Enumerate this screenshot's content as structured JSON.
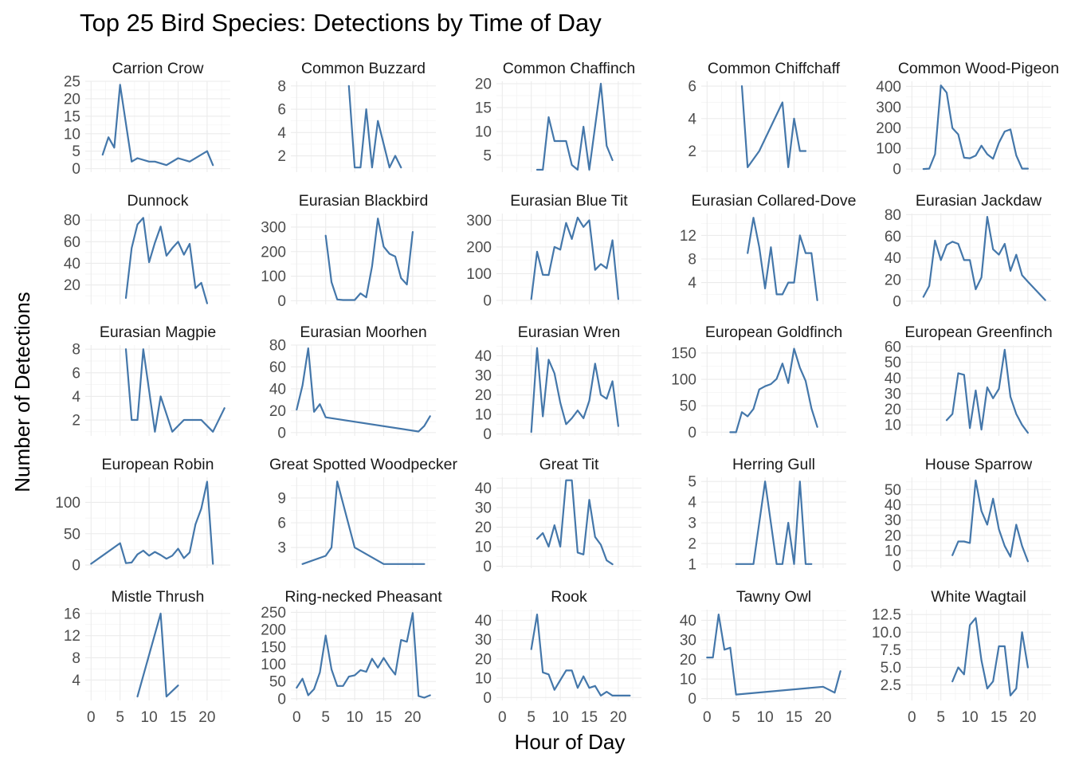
{
  "chart_data": {
    "type": "line",
    "title": "Top 25 Bird Species: Detections by Time of Day",
    "xlabel": "Hour of Day",
    "ylabel": "Number of Detections",
    "xlim": [
      -1,
      24
    ],
    "x_ticks": [
      0,
      5,
      10,
      15,
      20
    ],
    "x_tick_labels": [
      "0",
      "5",
      "10",
      "15",
      "20"
    ],
    "grid": true,
    "line_color": "#4477aa",
    "panels": [
      {
        "name": "Carrion Crow",
        "ylim": [
          -1,
          25
        ],
        "y_ticks": [
          0,
          5,
          10,
          15,
          20,
          25
        ],
        "x": [
          2,
          3,
          4,
          5,
          7,
          8,
          10,
          11,
          13,
          15,
          17,
          20,
          21
        ],
        "y": [
          4,
          9,
          6,
          24,
          2,
          3,
          2,
          2,
          1,
          3,
          2,
          5,
          1
        ]
      },
      {
        "name": "Common Buzzard",
        "ylim": [
          0.6,
          8.4
        ],
        "y_ticks": [
          2,
          4,
          6,
          8
        ],
        "x": [
          9,
          10,
          11,
          12,
          13,
          14,
          16,
          17,
          18
        ],
        "y": [
          8,
          1,
          1,
          6,
          1,
          5,
          1,
          2,
          1
        ]
      },
      {
        "name": "Common Chaffinch",
        "ylim": [
          1.5,
          20.5
        ],
        "y_ticks": [
          5,
          10,
          15,
          20
        ],
        "x": [
          6,
          7,
          8,
          9,
          10,
          11,
          12,
          13,
          14,
          15,
          17,
          18,
          19
        ],
        "y": [
          2,
          2,
          13,
          8,
          8,
          8,
          3,
          2,
          11,
          2,
          20,
          7,
          4
        ]
      },
      {
        "name": "Common Chiffchaff",
        "ylim": [
          0.7,
          6.3
        ],
        "y_ticks": [
          2,
          4,
          6
        ],
        "x": [
          6,
          7,
          9,
          13,
          14,
          15,
          16,
          17
        ],
        "y": [
          6,
          1,
          2,
          5,
          1,
          4,
          2,
          2
        ]
      },
      {
        "name": "Common Wood-Pigeon",
        "ylim": [
          -15,
          425
        ],
        "y_ticks": [
          0,
          100,
          200,
          300,
          400
        ],
        "x": [
          2,
          3,
          4,
          5,
          6,
          7,
          8,
          9,
          10,
          11,
          12,
          13,
          14,
          15,
          16,
          17,
          18,
          19,
          20
        ],
        "y": [
          0,
          2,
          72,
          405,
          370,
          198,
          168,
          55,
          52,
          65,
          113,
          72,
          50,
          127,
          182,
          192,
          66,
          2,
          2
        ]
      },
      {
        "name": "Dunnock",
        "ylim": [
          2,
          86
        ],
        "y_ticks": [
          20,
          40,
          60,
          80
        ],
        "x": [
          6,
          7,
          8,
          9,
          10,
          11,
          12,
          13,
          14,
          15,
          16,
          17,
          18,
          19,
          20
        ],
        "y": [
          8,
          54,
          76,
          82,
          41,
          59,
          74,
          47,
          54,
          60,
          48,
          58,
          17,
          22,
          3
        ]
      },
      {
        "name": "Eurasian Blackbird",
        "ylim": [
          -15,
          355
        ],
        "y_ticks": [
          0,
          100,
          200,
          300
        ],
        "x": [
          5,
          6,
          7,
          8,
          9,
          10,
          11,
          12,
          13,
          14,
          15,
          16,
          17,
          18,
          19,
          20
        ],
        "y": [
          265,
          76,
          5,
          3,
          3,
          3,
          30,
          14,
          140,
          335,
          220,
          191,
          180,
          92,
          66,
          280
        ]
      },
      {
        "name": "Eurasian Blue Tit",
        "ylim": [
          -15,
          325
        ],
        "y_ticks": [
          0,
          100,
          200,
          300
        ],
        "x": [
          5,
          6,
          7,
          8,
          9,
          10,
          11,
          12,
          13,
          14,
          15,
          16,
          17,
          18,
          19,
          20
        ],
        "y": [
          5,
          182,
          96,
          95,
          200,
          190,
          290,
          230,
          310,
          275,
          300,
          114,
          136,
          120,
          225,
          5
        ]
      },
      {
        "name": "Eurasian Collared-Dove",
        "ylim": [
          0.3,
          15.7
        ],
        "y_ticks": [
          4,
          8,
          12
        ],
        "x": [
          7,
          8,
          9,
          10,
          11,
          12,
          13,
          14,
          15,
          16,
          17,
          18,
          19
        ],
        "y": [
          9,
          15,
          10,
          3,
          10,
          2,
          2,
          4,
          4,
          12,
          9,
          9,
          1
        ]
      },
      {
        "name": "Eurasian Jackdaw",
        "ylim": [
          -3,
          81
        ],
        "y_ticks": [
          0,
          20,
          40,
          60,
          80
        ],
        "x": [
          2,
          3,
          4,
          5,
          6,
          7,
          8,
          9,
          10,
          11,
          12,
          13,
          14,
          15,
          16,
          17,
          18,
          19,
          20,
          23
        ],
        "y": [
          4,
          14,
          56,
          38,
          52,
          55,
          53,
          38,
          38,
          11,
          22,
          78,
          48,
          43,
          53,
          28,
          43,
          24,
          18,
          1
        ]
      },
      {
        "name": "Eurasian Magpie",
        "ylim": [
          0.65,
          8.35
        ],
        "y_ticks": [
          2,
          4,
          6,
          8
        ],
        "x": [
          6,
          7,
          8,
          9,
          11,
          12,
          14,
          16,
          19,
          21,
          23
        ],
        "y": [
          8,
          2,
          2,
          8,
          1,
          4,
          1,
          2,
          2,
          1,
          3
        ]
      },
      {
        "name": "Eurasian Moorhen",
        "ylim": [
          -3,
          80
        ],
        "y_ticks": [
          0,
          20,
          40,
          60,
          80
        ],
        "x": [
          0,
          1,
          2,
          3,
          4,
          5,
          21,
          22,
          23
        ],
        "y": [
          21,
          43,
          77,
          19,
          26,
          14,
          1,
          6,
          15
        ]
      },
      {
        "name": "Eurasian Wren",
        "ylim": [
          -1,
          45.5
        ],
        "y_ticks": [
          0,
          10,
          20,
          30,
          40
        ],
        "x": [
          5,
          6,
          7,
          8,
          9,
          10,
          11,
          12,
          13,
          14,
          15,
          16,
          17,
          18,
          19,
          20
        ],
        "y": [
          1,
          44,
          9,
          38,
          31,
          16,
          5,
          8,
          12,
          8,
          17,
          36,
          20,
          18,
          27,
          4
        ]
      },
      {
        "name": "European Goldfinch",
        "ylim": [
          -7,
          165
        ],
        "y_ticks": [
          0,
          50,
          100,
          150
        ],
        "x": [
          4,
          5,
          6,
          7,
          8,
          9,
          10,
          11,
          12,
          13,
          14,
          15,
          16,
          17,
          18,
          19
        ],
        "y": [
          0,
          0,
          38,
          30,
          44,
          81,
          87,
          91,
          101,
          130,
          93,
          158,
          122,
          97,
          45,
          10
        ]
      },
      {
        "name": "European Greenfinch",
        "ylim": [
          3,
          61
        ],
        "y_ticks": [
          10,
          20,
          30,
          40,
          50,
          60
        ],
        "x": [
          6,
          7,
          8,
          9,
          10,
          11,
          12,
          13,
          14,
          15,
          16,
          17,
          18,
          19,
          20
        ],
        "y": [
          13,
          17,
          43,
          42,
          8,
          32,
          7,
          34,
          27,
          33,
          58,
          28,
          17,
          10,
          5
        ]
      },
      {
        "name": "European Robin",
        "ylim": [
          -5,
          140
        ],
        "y_ticks": [
          0,
          50,
          100
        ],
        "x": [
          0,
          5,
          6,
          7,
          8,
          9,
          10,
          11,
          12,
          13,
          14,
          15,
          16,
          17,
          18,
          19,
          20,
          21
        ],
        "y": [
          2,
          35,
          3,
          4,
          17,
          23,
          15,
          21,
          16,
          10,
          15,
          26,
          11,
          20,
          65,
          90,
          133,
          2
        ]
      },
      {
        "name": "Great Spotted Woodpecker",
        "ylim": [
          0.5,
          11.5
        ],
        "y_ticks": [
          3,
          6,
          9
        ],
        "x": [
          1,
          5,
          6,
          7,
          10,
          15,
          22
        ],
        "y": [
          1,
          2,
          3,
          11,
          3,
          1,
          1
        ]
      },
      {
        "name": "Great Tit",
        "ylim": [
          -1,
          45.5
        ],
        "y_ticks": [
          0,
          10,
          20,
          30,
          40
        ],
        "x": [
          6,
          7,
          8,
          9,
          10,
          11,
          12,
          13,
          14,
          15,
          16,
          17,
          18,
          19
        ],
        "y": [
          14,
          17,
          10,
          21,
          10,
          44,
          44,
          7,
          6,
          34,
          15,
          11,
          3,
          1
        ]
      },
      {
        "name": "Herring Gull",
        "ylim": [
          0.8,
          5.2
        ],
        "y_ticks": [
          1,
          2,
          3,
          4,
          5
        ],
        "x": [
          5,
          6,
          7,
          8,
          9,
          10,
          12,
          13,
          14,
          15,
          16,
          17,
          18
        ],
        "y": [
          1,
          1,
          1,
          1,
          3,
          5,
          1,
          1,
          3,
          1,
          5,
          1,
          1
        ]
      },
      {
        "name": "House Sparrow",
        "ylim": [
          -1.5,
          58
        ],
        "y_ticks": [
          0,
          10,
          20,
          30,
          40,
          50
        ],
        "x": [
          7,
          8,
          9,
          10,
          11,
          12,
          13,
          14,
          15,
          16,
          17,
          18,
          19,
          20
        ],
        "y": [
          7,
          16,
          16,
          15,
          56,
          36,
          27,
          44,
          24,
          13,
          6,
          27,
          13,
          3
        ]
      },
      {
        "name": "Mistle Thrush",
        "ylim": [
          0.3,
          16.7
        ],
        "y_ticks": [
          4,
          8,
          12,
          16
        ],
        "x": [
          8,
          12,
          13,
          15
        ],
        "y": [
          1,
          16,
          1,
          3
        ]
      },
      {
        "name": "Ring-necked Pheasant",
        "ylim": [
          -5,
          258
        ],
        "y_ticks": [
          0,
          50,
          100,
          150,
          200,
          250
        ],
        "x": [
          0,
          1,
          2,
          3,
          4,
          5,
          6,
          7,
          8,
          9,
          10,
          11,
          12,
          13,
          14,
          15,
          16,
          17,
          18,
          19,
          20,
          21,
          22,
          23
        ],
        "y": [
          32,
          58,
          10,
          28,
          76,
          183,
          85,
          37,
          37,
          64,
          68,
          83,
          78,
          116,
          90,
          118,
          92,
          70,
          170,
          165,
          248,
          8,
          3,
          10
        ]
      },
      {
        "name": "Rook",
        "ylim": [
          -1.5,
          45.5
        ],
        "y_ticks": [
          0,
          10,
          20,
          30,
          40
        ],
        "x": [
          5,
          6,
          7,
          8,
          9,
          10,
          11,
          12,
          13,
          14,
          15,
          16,
          17,
          18,
          19,
          20,
          21,
          22
        ],
        "y": [
          25,
          43,
          13,
          12,
          4,
          9,
          14,
          14,
          5,
          11,
          5,
          6,
          1,
          3,
          1,
          1,
          1,
          1
        ]
      },
      {
        "name": "Tawny Owl",
        "ylim": [
          -1,
          45.5
        ],
        "y_ticks": [
          0,
          10,
          20,
          30,
          40
        ],
        "x": [
          0,
          1,
          2,
          3,
          4,
          5,
          20,
          22,
          23
        ],
        "y": [
          21,
          21,
          43,
          25,
          26,
          2,
          6,
          3,
          14
        ]
      },
      {
        "name": "White Wagtail",
        "ylim": [
          0.3,
          13.2
        ],
        "y_ticks": [
          2.5,
          5.0,
          7.5,
          10.0,
          12.5
        ],
        "y_tick_labels": [
          "2.5",
          "5.0",
          "7.5",
          "10.0",
          "12.5"
        ],
        "x": [
          7,
          8,
          9,
          10,
          11,
          12,
          13,
          14,
          15,
          16,
          17,
          18,
          19,
          20
        ],
        "y": [
          3,
          5,
          4,
          11,
          12,
          6,
          2,
          3,
          8,
          8,
          1,
          2,
          10,
          5
        ]
      }
    ]
  }
}
